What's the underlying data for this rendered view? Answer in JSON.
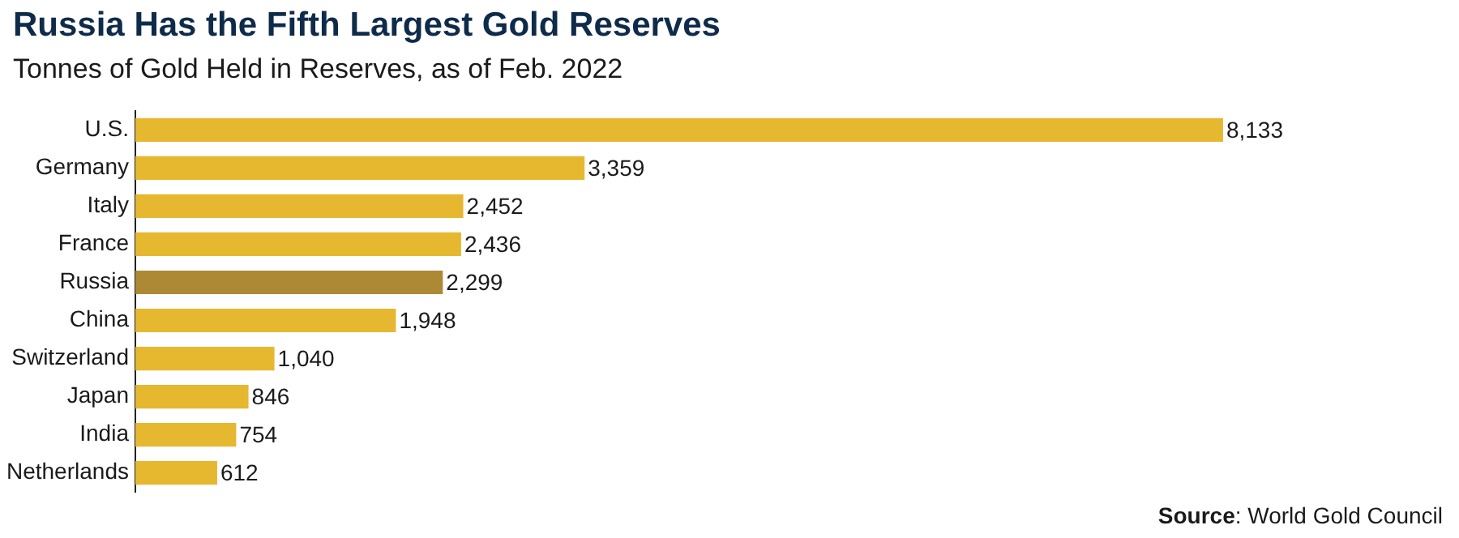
{
  "chart_data": {
    "type": "bar",
    "orientation": "horizontal",
    "title": "Russia Has the Fifth Largest Gold Reserves",
    "subtitle": "Tonnes of Gold Held in Reserves, as of Feb. 2022",
    "categories": [
      "U.S.",
      "Germany",
      "Italy",
      "France",
      "Russia",
      "China",
      "Switzerland",
      "Japan",
      "India",
      "Netherlands"
    ],
    "values": [
      8133,
      3359,
      2452,
      2436,
      2299,
      1948,
      1040,
      846,
      754,
      612
    ],
    "colors": [
      "#e6b830",
      "#e6b830",
      "#e6b830",
      "#e6b830",
      "#ad8935",
      "#e6b830",
      "#e6b830",
      "#e6b830",
      "#e6b830",
      "#e6b830"
    ],
    "value_labels": [
      "8,133",
      "3,359",
      "2,452",
      "2,436",
      "2,299",
      "1,948",
      "1,040",
      "846",
      "754",
      "612"
    ],
    "grid": false,
    "legend": false,
    "annotations": [
      "Source: World Gold Council"
    ]
  }
}
